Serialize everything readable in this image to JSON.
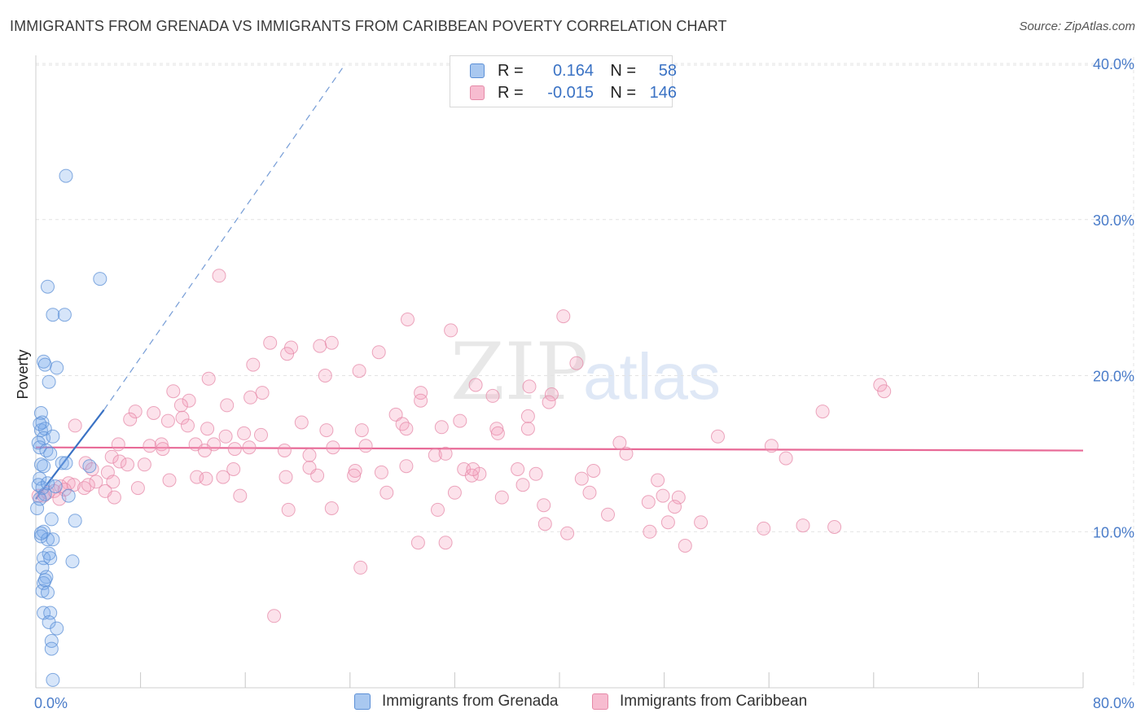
{
  "header": {
    "title": "IMMIGRANTS FROM GRENADA VS IMMIGRANTS FROM CARIBBEAN POVERTY CORRELATION CHART",
    "source": "Source: ZipAtlas.com"
  },
  "watermark": {
    "zip": "ZIP",
    "atlas": "atlas"
  },
  "legend": {
    "rows": [
      {
        "r_label": "R =",
        "r_value": "0.164",
        "n_label": "N =",
        "n_value": "58",
        "color": "#a9c8f0",
        "border": "#5b8fd6"
      },
      {
        "r_label": "R =",
        "r_value": "-0.015",
        "n_label": "N =",
        "n_value": "146",
        "color": "#f7bcd0",
        "border": "#e58aa8"
      }
    ]
  },
  "bottom_legend": {
    "items": [
      {
        "label": "Immigrants from Grenada",
        "color": "#a9c8f0",
        "border": "#5b8fd6"
      },
      {
        "label": "Immigrants from Caribbean",
        "color": "#f7bcd0",
        "border": "#e58aa8"
      }
    ]
  },
  "colors": {
    "blue_fill": "rgba(120,170,235,0.30)",
    "blue_stroke": "#5b8fd6",
    "blue_line": "#3a72c4",
    "pink_fill": "rgba(245,160,190,0.30)",
    "pink_stroke": "#e58aa8",
    "pink_line": "#e86a97",
    "grid": "#e3e3e3",
    "tick_text": "#4a7cc9"
  },
  "chart_data": {
    "type": "scatter",
    "title": "IMMIGRANTS FROM GRENADA VS IMMIGRANTS FROM CARIBBEAN POVERTY CORRELATION CHART",
    "xlabel": "",
    "ylabel": "Poverty",
    "xlim": [
      0,
      80
    ],
    "ylim": [
      0,
      40
    ],
    "x_tick_labels": [
      "0.0%",
      "80.0%"
    ],
    "y_ticks": [
      10,
      20,
      30,
      40
    ],
    "y_tick_labels": [
      "10.0%",
      "20.0%",
      "30.0%",
      "40.0%"
    ],
    "grid": true,
    "legend_position": "top-center",
    "series": [
      {
        "name": "Immigrants from Grenada",
        "R": 0.164,
        "N": 58,
        "trend": {
          "x": [
            0,
            5.2
          ],
          "y": [
            12.1,
            17.8
          ],
          "extended_x": [
            5.2,
            23.5
          ],
          "extended_y": [
            17.8,
            39.8
          ]
        },
        "points": [
          [
            2.3,
            32.8
          ],
          [
            4.9,
            26.2
          ],
          [
            0.9,
            25.7
          ],
          [
            1.3,
            23.9
          ],
          [
            2.2,
            23.9
          ],
          [
            0.6,
            20.9
          ],
          [
            0.7,
            20.7
          ],
          [
            1.6,
            20.5
          ],
          [
            1.0,
            19.6
          ],
          [
            0.4,
            17.6
          ],
          [
            0.5,
            17.0
          ],
          [
            0.4,
            16.5
          ],
          [
            0.7,
            16.6
          ],
          [
            0.6,
            16.0
          ],
          [
            1.3,
            16.1
          ],
          [
            0.2,
            15.7
          ],
          [
            0.3,
            15.4
          ],
          [
            0.8,
            15.2
          ],
          [
            1.1,
            15.0
          ],
          [
            0.4,
            14.3
          ],
          [
            0.6,
            14.2
          ],
          [
            2.0,
            14.4
          ],
          [
            2.3,
            14.4
          ],
          [
            4.1,
            14.2
          ],
          [
            0.3,
            13.4
          ],
          [
            0.5,
            12.8
          ],
          [
            0.7,
            12.4
          ],
          [
            2.5,
            12.3
          ],
          [
            0.3,
            12.1
          ],
          [
            1.2,
            10.8
          ],
          [
            3.0,
            10.7
          ],
          [
            0.6,
            10.0
          ],
          [
            0.4,
            9.7
          ],
          [
            0.9,
            9.5
          ],
          [
            1.3,
            9.5
          ],
          [
            1.0,
            8.6
          ],
          [
            0.6,
            8.3
          ],
          [
            1.1,
            8.3
          ],
          [
            2.8,
            8.1
          ],
          [
            0.5,
            7.7
          ],
          [
            0.8,
            7.1
          ],
          [
            0.6,
            6.7
          ],
          [
            0.5,
            6.2
          ],
          [
            0.9,
            6.1
          ],
          [
            0.6,
            4.8
          ],
          [
            1.1,
            4.8
          ],
          [
            1.0,
            4.2
          ],
          [
            1.6,
            3.8
          ],
          [
            1.2,
            3.0
          ],
          [
            1.2,
            2.5
          ],
          [
            1.3,
            0.5
          ],
          [
            0.2,
            13.0
          ],
          [
            0.9,
            13.1
          ],
          [
            1.5,
            12.9
          ],
          [
            0.1,
            11.5
          ],
          [
            0.4,
            9.9
          ],
          [
            0.7,
            6.9
          ],
          [
            0.3,
            16.9
          ]
        ]
      },
      {
        "name": "Immigrants from Caribbean",
        "R": -0.015,
        "N": 146,
        "trend": {
          "x": [
            0,
            80
          ],
          "y": [
            15.4,
            15.2
          ]
        },
        "points": [
          [
            14.0,
            26.4
          ],
          [
            40.3,
            23.8
          ],
          [
            28.4,
            23.6
          ],
          [
            31.7,
            22.9
          ],
          [
            17.9,
            22.1
          ],
          [
            21.7,
            21.9
          ],
          [
            22.6,
            22.1
          ],
          [
            19.5,
            21.8
          ],
          [
            19.2,
            21.4
          ],
          [
            26.2,
            21.5
          ],
          [
            16.6,
            20.7
          ],
          [
            41.3,
            20.8
          ],
          [
            24.7,
            20.3
          ],
          [
            22.1,
            20.0
          ],
          [
            13.2,
            19.8
          ],
          [
            33.6,
            19.4
          ],
          [
            37.7,
            19.3
          ],
          [
            64.5,
            19.4
          ],
          [
            64.8,
            19.0
          ],
          [
            10.5,
            19.0
          ],
          [
            17.3,
            18.9
          ],
          [
            29.4,
            18.9
          ],
          [
            34.9,
            18.7
          ],
          [
            39.4,
            18.8
          ],
          [
            11.7,
            18.4
          ],
          [
            16.4,
            18.6
          ],
          [
            14.6,
            18.1
          ],
          [
            11.1,
            18.1
          ],
          [
            29.4,
            18.4
          ],
          [
            39.2,
            18.3
          ],
          [
            7.6,
            17.7
          ],
          [
            9.0,
            17.6
          ],
          [
            11.2,
            17.3
          ],
          [
            27.5,
            17.5
          ],
          [
            37.6,
            17.4
          ],
          [
            60.1,
            17.7
          ],
          [
            7.2,
            17.2
          ],
          [
            10.1,
            17.1
          ],
          [
            20.3,
            17.0
          ],
          [
            32.4,
            17.1
          ],
          [
            28.0,
            16.9
          ],
          [
            3.0,
            16.8
          ],
          [
            11.6,
            16.8
          ],
          [
            13.1,
            16.6
          ],
          [
            22.2,
            16.5
          ],
          [
            28.3,
            16.6
          ],
          [
            35.2,
            16.6
          ],
          [
            31.0,
            16.7
          ],
          [
            37.6,
            16.6
          ],
          [
            24.9,
            16.5
          ],
          [
            14.5,
            16.1
          ],
          [
            17.2,
            16.2
          ],
          [
            15.9,
            16.3
          ],
          [
            35.3,
            16.3
          ],
          [
            52.1,
            16.1
          ],
          [
            6.3,
            15.6
          ],
          [
            8.7,
            15.5
          ],
          [
            9.6,
            15.6
          ],
          [
            12.2,
            15.6
          ],
          [
            13.6,
            15.6
          ],
          [
            15.2,
            15.3
          ],
          [
            16.3,
            15.4
          ],
          [
            19.0,
            15.2
          ],
          [
            22.7,
            15.4
          ],
          [
            25.2,
            15.5
          ],
          [
            44.6,
            15.7
          ],
          [
            56.2,
            15.5
          ],
          [
            9.7,
            15.3
          ],
          [
            12.9,
            15.2
          ],
          [
            20.9,
            14.9
          ],
          [
            30.5,
            14.9
          ],
          [
            31.3,
            15.0
          ],
          [
            45.1,
            15.0
          ],
          [
            57.3,
            14.7
          ],
          [
            5.8,
            14.8
          ],
          [
            6.4,
            14.5
          ],
          [
            3.8,
            14.4
          ],
          [
            7.0,
            14.3
          ],
          [
            8.3,
            14.3
          ],
          [
            4.3,
            14.0
          ],
          [
            5.5,
            13.8
          ],
          [
            15.1,
            14.0
          ],
          [
            20.9,
            14.1
          ],
          [
            24.4,
            13.9
          ],
          [
            26.4,
            13.8
          ],
          [
            28.3,
            14.2
          ],
          [
            32.7,
            14.0
          ],
          [
            33.9,
            13.7
          ],
          [
            36.8,
            14.0
          ],
          [
            38.2,
            13.7
          ],
          [
            42.6,
            13.9
          ],
          [
            12.3,
            13.5
          ],
          [
            13.0,
            13.4
          ],
          [
            14.3,
            13.5
          ],
          [
            19.1,
            13.5
          ],
          [
            21.5,
            13.6
          ],
          [
            24.3,
            13.6
          ],
          [
            33.3,
            13.6
          ],
          [
            41.7,
            13.4
          ],
          [
            47.5,
            13.3
          ],
          [
            10.2,
            13.3
          ],
          [
            4.6,
            13.2
          ],
          [
            5.9,
            13.2
          ],
          [
            2.5,
            13.1
          ],
          [
            2.9,
            13.0
          ],
          [
            1.9,
            12.9
          ],
          [
            7.8,
            12.8
          ],
          [
            3.7,
            12.8
          ],
          [
            5.3,
            12.6
          ],
          [
            1.4,
            12.6
          ],
          [
            2.2,
            12.7
          ],
          [
            0.9,
            12.5
          ],
          [
            0.6,
            12.3
          ],
          [
            1.8,
            12.1
          ],
          [
            4.0,
            13.0
          ],
          [
            37.2,
            13.0
          ],
          [
            6.0,
            12.2
          ],
          [
            15.6,
            12.3
          ],
          [
            26.8,
            12.5
          ],
          [
            32.0,
            12.5
          ],
          [
            35.6,
            12.2
          ],
          [
            42.3,
            12.5
          ],
          [
            47.9,
            12.3
          ],
          [
            49.1,
            12.2
          ],
          [
            22.6,
            11.5
          ],
          [
            30.7,
            11.4
          ],
          [
            38.8,
            11.7
          ],
          [
            46.8,
            11.9
          ],
          [
            48.8,
            11.6
          ],
          [
            19.3,
            11.4
          ],
          [
            43.7,
            11.1
          ],
          [
            48.3,
            10.6
          ],
          [
            50.8,
            10.6
          ],
          [
            38.9,
            10.5
          ],
          [
            55.6,
            10.2
          ],
          [
            58.6,
            10.4
          ],
          [
            61.0,
            10.3
          ],
          [
            40.6,
            9.9
          ],
          [
            46.9,
            10.0
          ],
          [
            29.2,
            9.3
          ],
          [
            31.3,
            9.3
          ],
          [
            49.6,
            9.1
          ],
          [
            24.8,
            7.7
          ],
          [
            18.2,
            4.6
          ],
          [
            0.2,
            12.3
          ],
          [
            33.4,
            14.0
          ]
        ]
      }
    ]
  }
}
